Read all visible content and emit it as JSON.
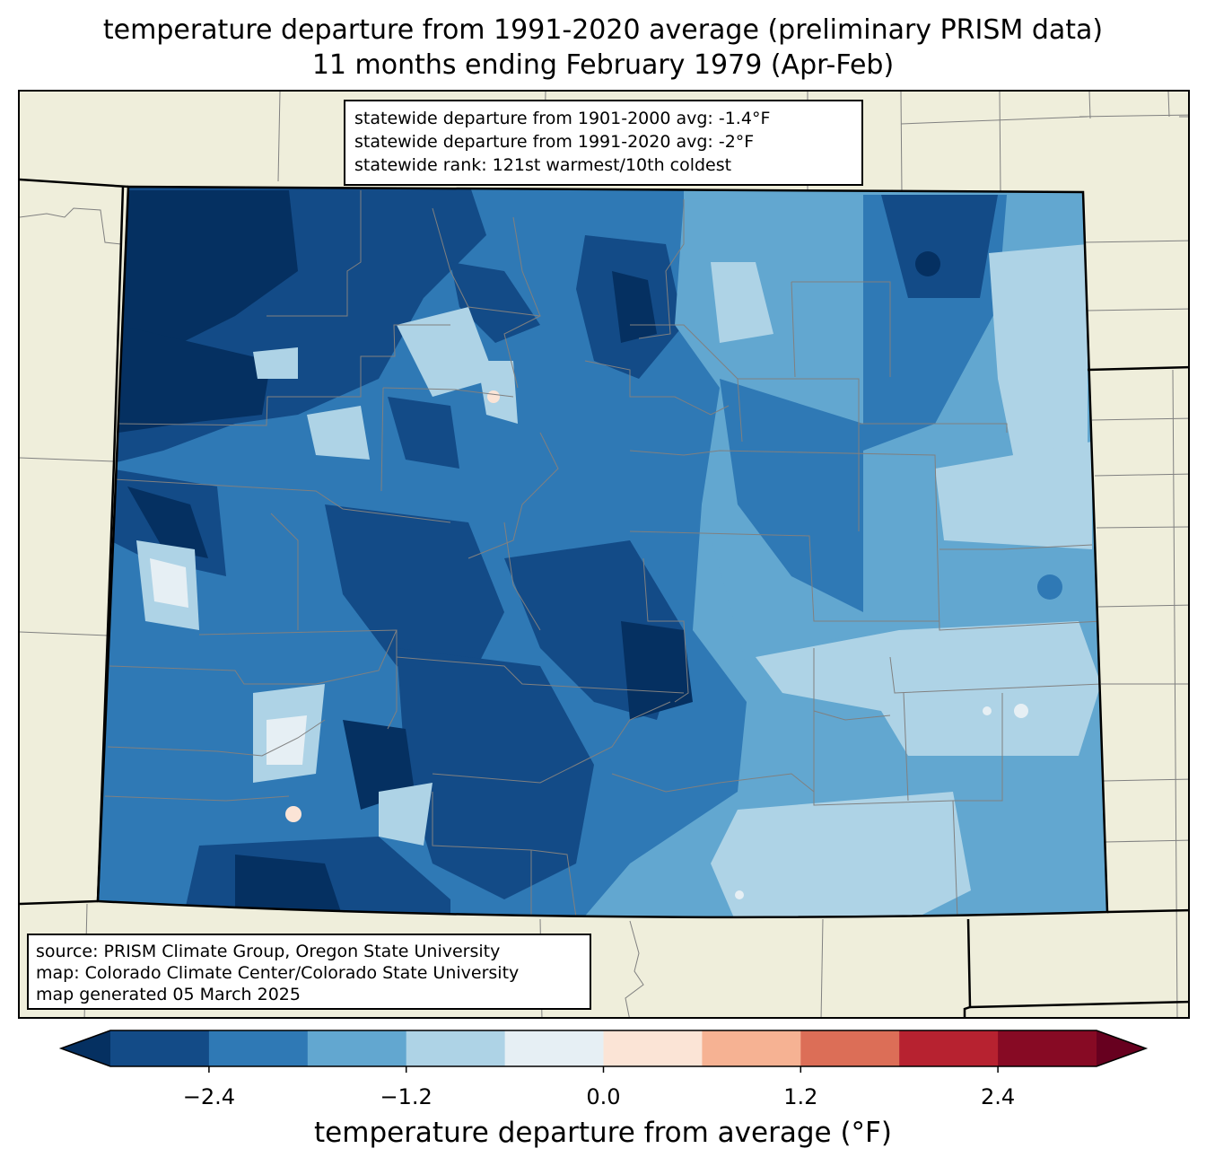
{
  "title": {
    "line1": "temperature departure from 1991-2020 average (preliminary PRISM data)",
    "line2": "11 months ending February 1979 (Apr-Feb)"
  },
  "stats": {
    "line1": "statewide departure from 1901-2000 avg: -1.4°F",
    "line2": "statewide departure from 1991-2020 avg: -2°F",
    "line3": "statewide rank: 121st warmest/10th coldest"
  },
  "source": {
    "line1": "source: PRISM Climate Group, Oregon State University",
    "line2": "map: Colorado Climate Center/Colorado State University",
    "line3": "map generated 05 March 2025"
  },
  "colorbar": {
    "label": "temperature departure from average (°F)",
    "ticks": [
      "−2.4",
      "−1.2",
      "0.0",
      "1.2",
      "2.4"
    ],
    "tick_values": [
      -2.4,
      -1.2,
      0.0,
      1.2,
      2.4
    ],
    "bounds": [
      -3.0,
      3.0
    ],
    "extend": "both",
    "colors": [
      "#053061",
      "#134b87",
      "#2f79b5",
      "#62a7d0",
      "#aed3e6",
      "#e6eff4",
      "#fbe4d6",
      "#f6b293",
      "#dc6e57",
      "#b72230",
      "#870a24",
      "#67001f"
    ]
  },
  "map": {
    "land_color": "#efeedb",
    "state_border_color": "#000000",
    "county_line_color": "#808080"
  }
}
